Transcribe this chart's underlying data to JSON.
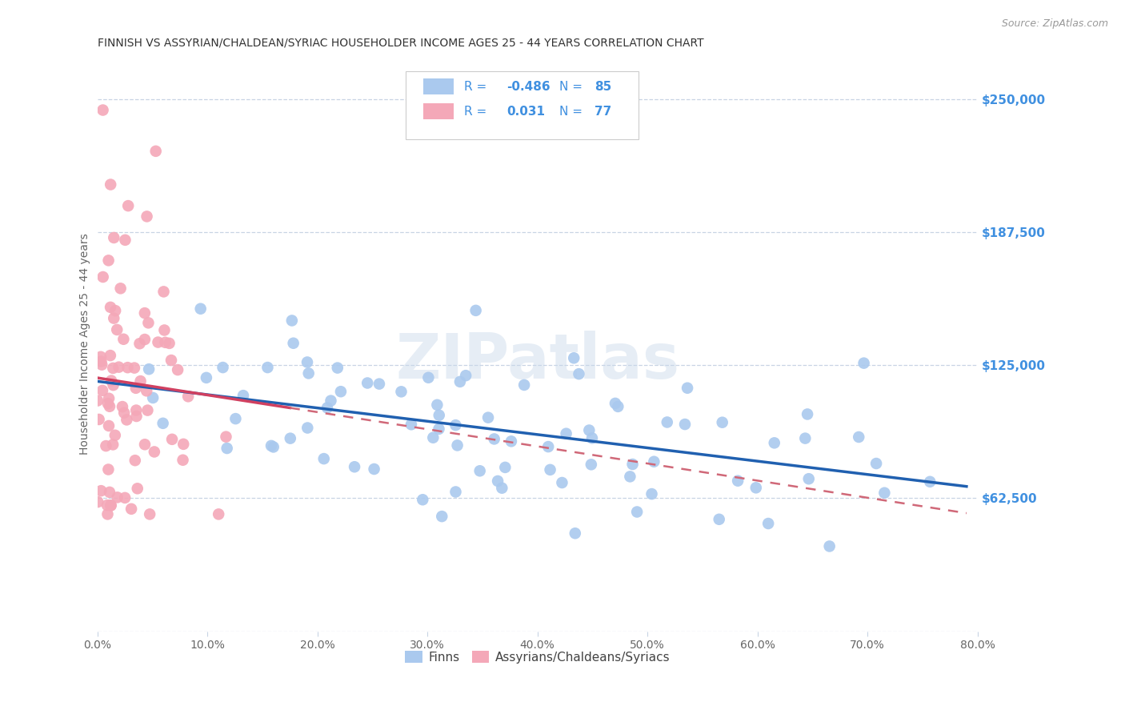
{
  "title": "FINNISH VS ASSYRIAN/CHALDEAN/SYRIAC HOUSEHOLDER INCOME AGES 25 - 44 YEARS CORRELATION CHART",
  "source": "Source: ZipAtlas.com",
  "ylabel": "Householder Income Ages 25 - 44 years",
  "ytick_labels": [
    "$62,500",
    "$125,000",
    "$187,500",
    "$250,000"
  ],
  "ytick_values": [
    62500,
    125000,
    187500,
    250000
  ],
  "ymin": 0,
  "ymax": 270000,
  "xmin": 0.0,
  "xmax": 0.8,
  "legend_blue_r": "-0.486",
  "legend_blue_n": "85",
  "legend_pink_r": "0.031",
  "legend_pink_n": "77",
  "blue_color": "#aac9ee",
  "pink_color": "#f4a8b8",
  "blue_line_color": "#2060b0",
  "pink_line_color": "#d04060",
  "pink_dashed_color": "#d06878",
  "watermark_color": "#c8d8ea",
  "background_color": "#ffffff",
  "grid_color": "#c8d4e4",
  "title_color": "#333333",
  "axis_label_color": "#666666",
  "right_tick_color": "#4090e0",
  "blue_scatter_seed": 42,
  "pink_scatter_seed": 123
}
